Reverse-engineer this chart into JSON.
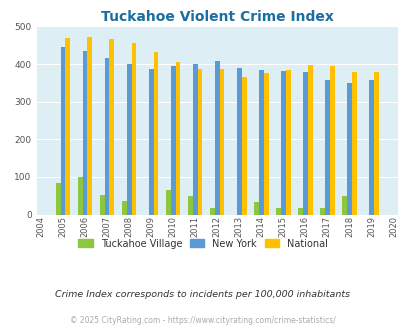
{
  "title": "Tuckahoe Violent Crime Index",
  "years": [
    2004,
    2005,
    2006,
    2007,
    2008,
    2009,
    2010,
    2011,
    2012,
    2013,
    2014,
    2015,
    2016,
    2017,
    2018,
    2019,
    2020
  ],
  "tuckahoe": [
    0,
    83,
    100,
    53,
    37,
    0,
    65,
    50,
    18,
    0,
    33,
    18,
    18,
    18,
    50,
    0,
    0
  ],
  "new_york": [
    0,
    445,
    435,
    415,
    400,
    387,
    395,
    400,
    407,
    390,
    383,
    381,
    378,
    357,
    350,
    358,
    0
  ],
  "national": [
    0,
    470,
    473,
    467,
    455,
    432,
    405,
    388,
    387,
    366,
    376,
    383,
    397,
    395,
    379,
    379,
    0
  ],
  "colors": {
    "tuckahoe": "#8dc63f",
    "new_york": "#5b9bd5",
    "national": "#ffc000"
  },
  "ylim": [
    0,
    500
  ],
  "yticks": [
    0,
    100,
    200,
    300,
    400,
    500
  ],
  "background_color": "#ddeef5",
  "title_color": "#1a6ea0",
  "legend_labels": [
    "Tuckahoe Village",
    "New York",
    "National"
  ],
  "footnote": "Crime Index corresponds to incidents per 100,000 inhabitants",
  "copyright": "© 2025 CityRating.com - https://www.cityrating.com/crime-statistics/",
  "bar_width": 0.22
}
